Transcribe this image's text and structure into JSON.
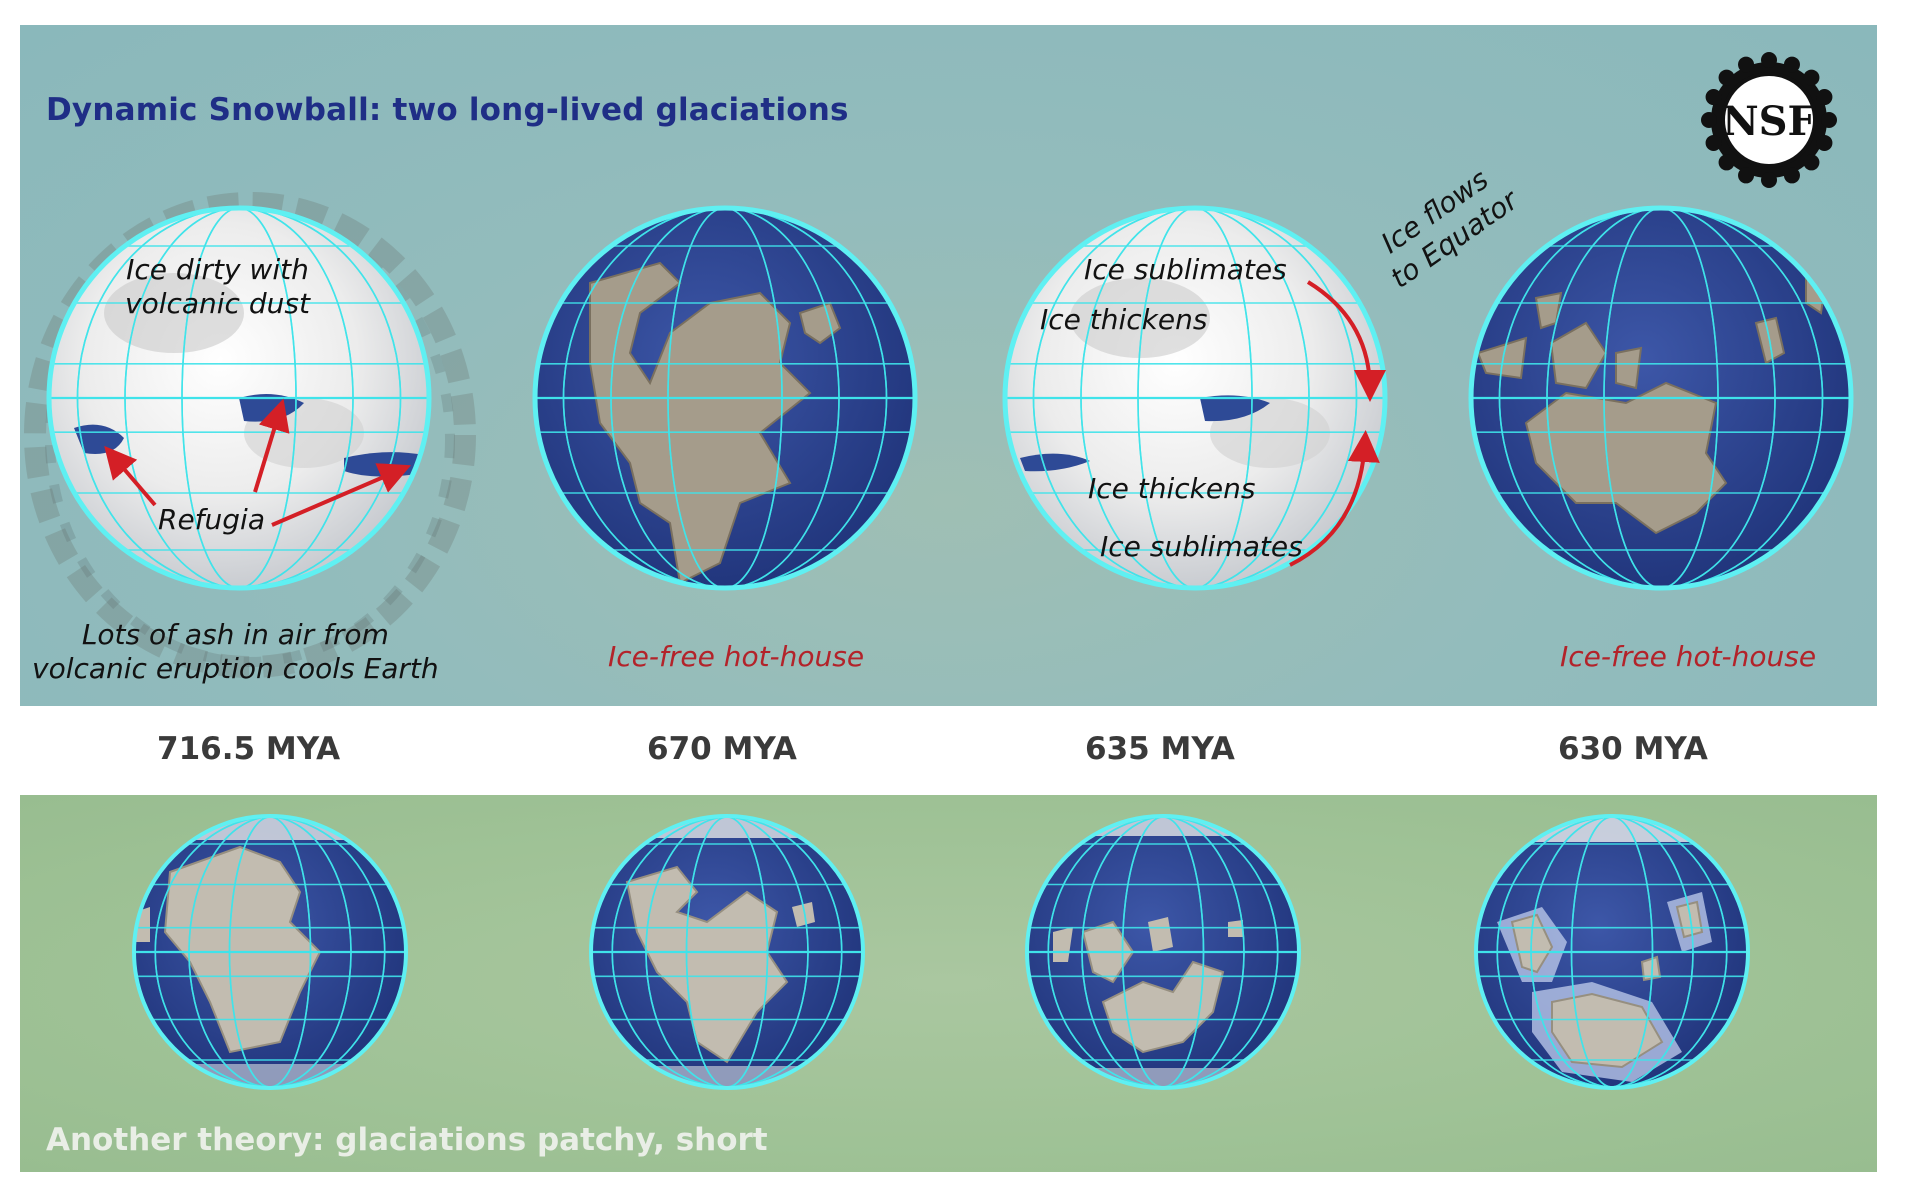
{
  "top_title": "Dynamic Snowball: two long-lived glaciations",
  "bottom_title": "Another theory: glaciations patchy, short",
  "logo_text": "NSF",
  "colors": {
    "title": "#1f2e86",
    "hot": "#b3232a",
    "arrow": "#d41f26",
    "grid": "#3fe3ea",
    "ocean": "#263e88"
  },
  "annotations": {
    "ice_dirty": [
      "Ice dirty with",
      "volcanic dust"
    ],
    "refugia": "Refugia",
    "ash": [
      "Lots of ash in air from",
      "volcanic eruption cools Earth"
    ],
    "hot_house_1": "Ice-free hot-house",
    "hot_house_2": "Ice-free hot-house",
    "ice_sublimates_top": "Ice sublimates",
    "ice_thickens_top": "Ice thickens",
    "ice_thickens_bottom": "Ice thickens",
    "ice_sublimates_bottom": "Ice sublimates",
    "ice_flows": [
      "Ice flows",
      "to Equator"
    ]
  },
  "timeline": [
    "716.5 MYA",
    "670 MYA",
    "635 MYA",
    "630 MYA"
  ]
}
